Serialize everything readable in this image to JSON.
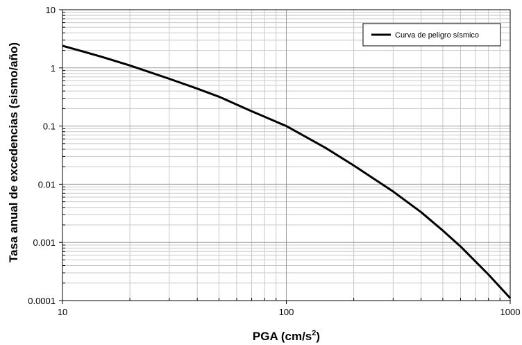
{
  "chart_data": {
    "type": "line",
    "xscale": "log",
    "yscale": "log",
    "xlim": [
      10,
      1000
    ],
    "ylim": [
      0.0001,
      10
    ],
    "grid": true,
    "legend_position": "top-right",
    "xlabel_main": "PGA (cm/s",
    "xlabel_sup": "2",
    "xlabel_end": ")",
    "ylabel": "Tasa anual de excedencias (sismo/año)",
    "x_ticks": [
      {
        "value": 10,
        "label": "10"
      },
      {
        "value": 100,
        "label": "100"
      },
      {
        "value": 1000,
        "label": "1000"
      }
    ],
    "y_ticks": [
      {
        "value": 10,
        "label": "10"
      },
      {
        "value": 1,
        "label": "1"
      },
      {
        "value": 0.1,
        "label": "0.1"
      },
      {
        "value": 0.01,
        "label": "0.01"
      },
      {
        "value": 0.001,
        "label": "0.001"
      },
      {
        "value": 0.0001,
        "label": "0.0001"
      }
    ],
    "series": [
      {
        "name": "Curva de peligro sísmico",
        "color": "#000000",
        "x": [
          10,
          15,
          20,
          30,
          40,
          50,
          70,
          100,
          150,
          200,
          300,
          400,
          500,
          600,
          700,
          800,
          1000
        ],
        "y": [
          2.4,
          1.55,
          1.1,
          0.65,
          0.44,
          0.32,
          0.18,
          0.1,
          0.042,
          0.021,
          0.0075,
          0.0033,
          0.0016,
          0.00085,
          0.00047,
          0.00028,
          0.00011
        ]
      }
    ]
  }
}
